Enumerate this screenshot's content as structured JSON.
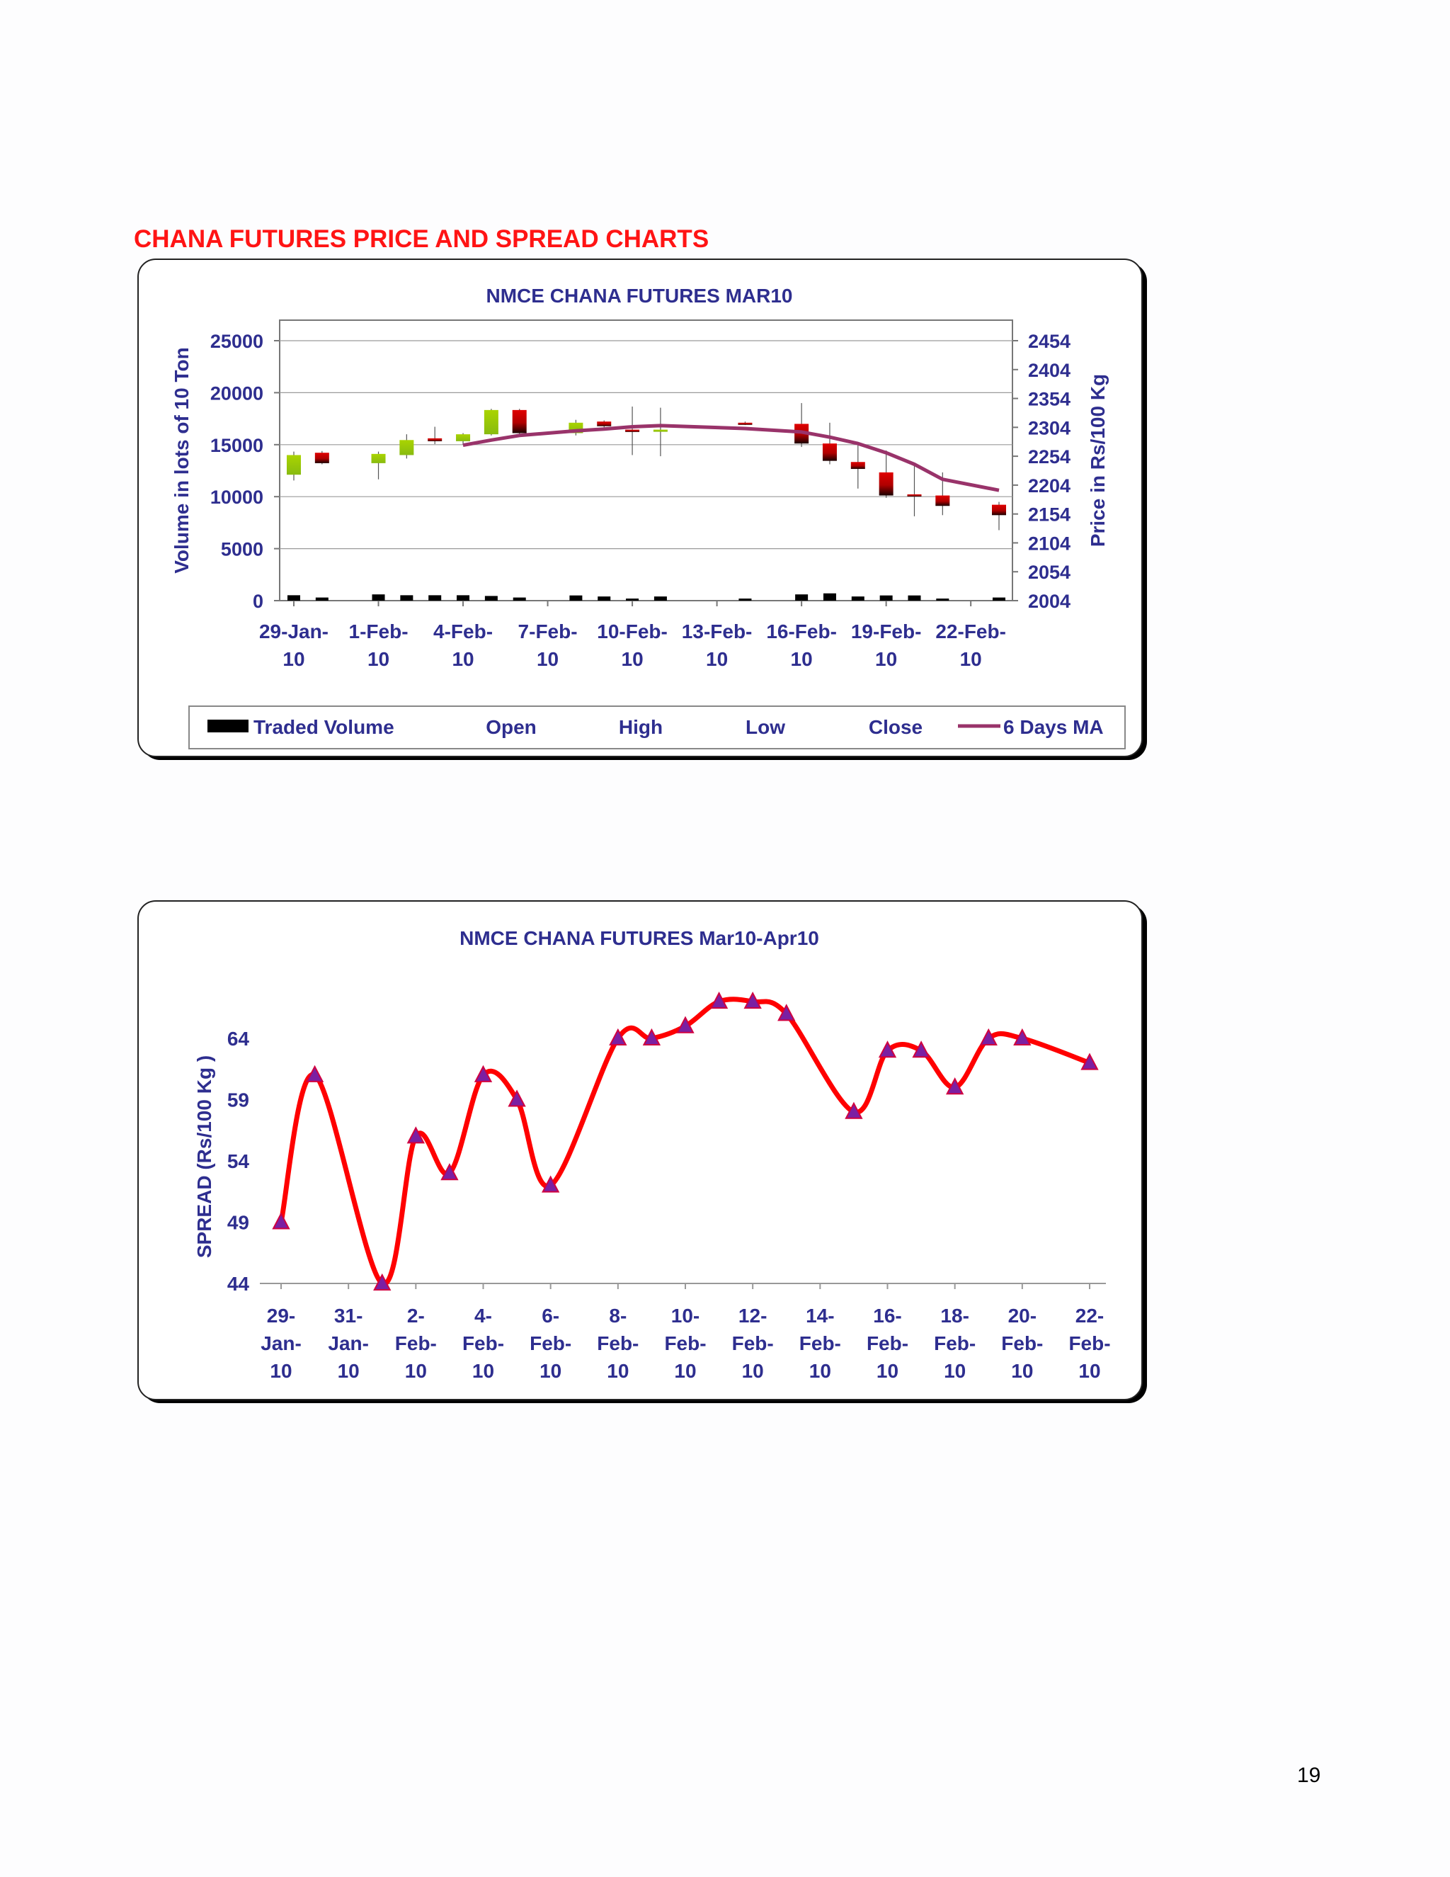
{
  "page": {
    "section_title": "CHANA FUTURES PRICE AND SPREAD CHARTS",
    "page_number": "19"
  },
  "colors": {
    "section_title": "#ff1414",
    "chart_text": "#2e2e8f",
    "ma_line": "#99336a",
    "up_candle": "#99cc00",
    "down_candle": "#e00000",
    "spread_line": "#ff0000",
    "spread_marker_fill": "#7b1fa2",
    "volume_bar": "#000000"
  },
  "chart_data": [
    {
      "type": "candlestick",
      "title": "NMCE CHANA FUTURES MAR10",
      "ylabel_left": "Volume in lots of 10 Ton",
      "ylabel_right": "Price in Rs/100 Kg",
      "x_tick_labels": [
        [
          "29-Jan-",
          "10"
        ],
        [
          "1-Feb-",
          "10"
        ],
        [
          "4-Feb-",
          "10"
        ],
        [
          "7-Feb-",
          "10"
        ],
        [
          "10-Feb-",
          "10"
        ],
        [
          "13-Feb-",
          "10"
        ],
        [
          "16-Feb-",
          "10"
        ],
        [
          "19-Feb-",
          "10"
        ],
        [
          "22-Feb-",
          "10"
        ]
      ],
      "y_left_ticks": [
        "0",
        "5000",
        "10000",
        "15000",
        "20000",
        "25000"
      ],
      "y_left_range": [
        0,
        25000
      ],
      "y_right_ticks": [
        "2004",
        "2054",
        "2104",
        "2154",
        "2204",
        "2254",
        "2304",
        "2354",
        "2404",
        "2454"
      ],
      "y_right_range": [
        2004,
        2454
      ],
      "grid": true,
      "legend_position": "bottom",
      "legend": [
        {
          "label": "Traded Volume",
          "symbol": "bar"
        },
        {
          "label": "Open",
          "symbol": "none"
        },
        {
          "label": "High",
          "symbol": "none"
        },
        {
          "label": "Low",
          "symbol": "none"
        },
        {
          "label": "Close",
          "symbol": "none"
        },
        {
          "label": "6 Days MA",
          "symbol": "line"
        }
      ],
      "x_day_range": [
        0,
        25
      ],
      "candles": [
        {
          "day": 0,
          "open": 2222,
          "close": 2256,
          "high": 2262,
          "low": 2212,
          "volume": 520
        },
        {
          "day": 1,
          "open": 2260,
          "close": 2242,
          "high": 2263,
          "low": 2240,
          "volume": 300
        },
        {
          "day": 3,
          "open": 2242,
          "close": 2258,
          "high": 2262,
          "low": 2214,
          "volume": 600
        },
        {
          "day": 4,
          "open": 2256,
          "close": 2282,
          "high": 2292,
          "low": 2250,
          "volume": 520
        },
        {
          "day": 5,
          "open": 2285,
          "close": 2280,
          "high": 2305,
          "low": 2275,
          "volume": 520
        },
        {
          "day": 6,
          "open": 2280,
          "close": 2292,
          "high": 2294,
          "low": 2274,
          "volume": 520
        },
        {
          "day": 7,
          "open": 2292,
          "close": 2334,
          "high": 2336,
          "low": 2290,
          "volume": 450
        },
        {
          "day": 8,
          "open": 2334,
          "close": 2294,
          "high": 2336,
          "low": 2292,
          "volume": 300
        },
        {
          "day": 10,
          "open": 2294,
          "close": 2312,
          "high": 2317,
          "low": 2290,
          "volume": 500
        },
        {
          "day": 11,
          "open": 2314,
          "close": 2306,
          "high": 2316,
          "low": 2300,
          "volume": 400
        },
        {
          "day": 12,
          "open": 2300,
          "close": 2296,
          "high": 2340,
          "low": 2256,
          "volume": 200
        },
        {
          "day": 13,
          "open": 2297,
          "close": 2300,
          "high": 2338,
          "low": 2254,
          "volume": 400
        },
        {
          "day": 16,
          "open": 2312,
          "close": 2310,
          "high": 2314,
          "low": 2308,
          "volume": 200
        },
        {
          "day": 18,
          "open": 2310,
          "close": 2276,
          "high": 2346,
          "low": 2270,
          "volume": 600
        },
        {
          "day": 19,
          "open": 2276,
          "close": 2246,
          "high": 2312,
          "low": 2240,
          "volume": 700
        },
        {
          "day": 20,
          "open": 2244,
          "close": 2232,
          "high": 2278,
          "low": 2198,
          "volume": 400
        },
        {
          "day": 21,
          "open": 2226,
          "close": 2186,
          "high": 2264,
          "low": 2182,
          "volume": 500
        },
        {
          "day": 22,
          "open": 2188,
          "close": 2186,
          "high": 2240,
          "low": 2150,
          "volume": 500
        },
        {
          "day": 23,
          "open": 2186,
          "close": 2168,
          "high": 2226,
          "low": 2152,
          "volume": 200
        },
        {
          "day": 25,
          "open": 2170,
          "close": 2152,
          "high": 2175,
          "low": 2126,
          "volume": 300
        }
      ],
      "ma_series": {
        "name": "6 Days MA",
        "points": [
          {
            "day": 6,
            "value": 2273
          },
          {
            "day": 7,
            "value": 2282
          },
          {
            "day": 8,
            "value": 2290
          },
          {
            "day": 10,
            "value": 2298
          },
          {
            "day": 11,
            "value": 2301
          },
          {
            "day": 12,
            "value": 2305
          },
          {
            "day": 13,
            "value": 2307
          },
          {
            "day": 16,
            "value": 2302
          },
          {
            "day": 18,
            "value": 2296
          },
          {
            "day": 19,
            "value": 2287
          },
          {
            "day": 20,
            "value": 2276
          },
          {
            "day": 21,
            "value": 2260
          },
          {
            "day": 22,
            "value": 2240
          },
          {
            "day": 23,
            "value": 2214
          },
          {
            "day": 25,
            "value": 2195
          }
        ]
      }
    },
    {
      "type": "line",
      "title": "NMCE CHANA FUTURES Mar10-Apr10",
      "ylabel": "SPREAD (Rs/100 Kg    )",
      "y_ticks": [
        "44",
        "49",
        "54",
        "59",
        "64"
      ],
      "y_range": [
        44,
        69
      ],
      "x_day_range": [
        0,
        24
      ],
      "x_tick_labels": [
        [
          "29-",
          "Jan-",
          "10"
        ],
        [
          "31-",
          "Jan-",
          "10"
        ],
        [
          "2-",
          "Feb-",
          "10"
        ],
        [
          "4-",
          "Feb-",
          "10"
        ],
        [
          "6-",
          "Feb-",
          "10"
        ],
        [
          "8-",
          "Feb-",
          "10"
        ],
        [
          "10-",
          "Feb-",
          "10"
        ],
        [
          "12-",
          "Feb-",
          "10"
        ],
        [
          "14-",
          "Feb-",
          "10"
        ],
        [
          "16-",
          "Feb-",
          "10"
        ],
        [
          "18-",
          "Feb-",
          "10"
        ],
        [
          "20-",
          "Feb-",
          "10"
        ],
        [
          "22-",
          "Feb-",
          "10"
        ]
      ],
      "grid": false,
      "series": [
        {
          "x": [
            0,
            1,
            3,
            4,
            5,
            6,
            7,
            8,
            10,
            11,
            12,
            13,
            14,
            15,
            17,
            18,
            19,
            20,
            21,
            22,
            24
          ],
          "values": [
            49,
            61,
            44,
            56,
            53,
            61,
            59,
            52,
            64,
            64,
            65,
            67,
            67,
            66,
            58,
            63,
            63,
            60,
            64,
            64,
            62
          ]
        }
      ]
    }
  ]
}
